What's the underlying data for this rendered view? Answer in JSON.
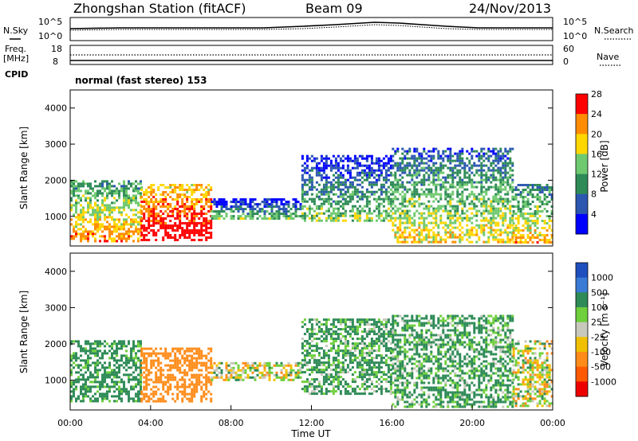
{
  "header": {
    "station": "Zhongshan Station (fitACF)",
    "beam": "Beam 09",
    "date": "24/Nov/2013"
  },
  "noise_panel": {
    "left_label": "N.Sky",
    "right_label": "N.Search",
    "left_ticks": [
      "10^5",
      "10^0"
    ],
    "right_ticks": [
      "10^5",
      "10^0"
    ]
  },
  "freq_panel": {
    "left_label_1": "Freq.",
    "left_label_2": "[MHz]",
    "left_ticks": [
      "18",
      "8"
    ],
    "right_label": "Nave",
    "right_ticks": [
      "60",
      "0"
    ]
  },
  "cpid": {
    "label": "CPID",
    "text": "normal (fast stereo) 153"
  },
  "chart_data": [
    {
      "type": "heatmap",
      "title": "",
      "xlabel": "",
      "ylabel": "Slant Range [km]",
      "yticks": [
        "1000",
        "2000",
        "3000",
        "4000"
      ],
      "ylim": [
        180,
        4500
      ],
      "xlim": [
        "00:00",
        "24:00"
      ],
      "colorbar_label": "Power [dB]",
      "colorbar_ticks": [
        "4",
        "8",
        "12",
        "16",
        "20",
        "24",
        "28"
      ],
      "colorbar_colors": [
        "#0000ff",
        "#2b57b0",
        "#2e8b57",
        "#6fc96f",
        "#ffd700",
        "#ff8c00",
        "#ff0000"
      ],
      "colorbar_range": [
        0,
        30
      ],
      "regions": [
        {
          "t_start": 0.0,
          "t_end": 3.5,
          "range_start": 300,
          "range_end": 2000,
          "value": 18
        },
        {
          "t_start": 3.5,
          "t_end": 7.0,
          "range_start": 350,
          "range_end": 1900,
          "value": 27
        },
        {
          "t_start": 7.0,
          "t_end": 11.5,
          "range_start": 950,
          "range_end": 1500,
          "value": 9
        },
        {
          "t_start": 11.5,
          "t_end": 16.0,
          "range_start": 900,
          "range_end": 2700,
          "value": 10
        },
        {
          "t_start": 16.0,
          "t_end": 22.0,
          "range_start": 300,
          "range_end": 2900,
          "value": 14
        },
        {
          "t_start": 22.0,
          "t_end": 24.0,
          "range_start": 300,
          "range_end": 1900,
          "value": 16
        }
      ]
    },
    {
      "type": "heatmap",
      "title": "",
      "xlabel": "Time UT",
      "ylabel": "Slant Range [km]",
      "yticks": [
        "1000",
        "2000",
        "3000",
        "4000"
      ],
      "xticks": [
        "00:00",
        "04:00",
        "08:00",
        "12:00",
        "16:00",
        "20:00",
        "00:00"
      ],
      "ylim": [
        180,
        4500
      ],
      "xlim": [
        "00:00",
        "24:00"
      ],
      "colorbar_label": "Velocity [m s⁻¹]",
      "colorbar_ticks": [
        "1000",
        "500",
        "100",
        "25",
        "-25",
        "-100",
        "-500",
        "-1000"
      ],
      "colorbar_colors": [
        "#1f4fbf",
        "#3a7bd5",
        "#2e8b57",
        "#6fcf3c",
        "#c8c8bc",
        "#f0c000",
        "#ff8c1a",
        "#ff5a00",
        "#ee0000"
      ],
      "regions": [
        {
          "t_start": 0.0,
          "t_end": 3.5,
          "range_start": 400,
          "range_end": 2100,
          "value": 200
        },
        {
          "t_start": 3.5,
          "t_end": 7.0,
          "range_start": 400,
          "range_end": 1900,
          "value": -300
        },
        {
          "t_start": 7.0,
          "t_end": 11.5,
          "range_start": 1000,
          "range_end": 1500,
          "value": 0
        },
        {
          "t_start": 11.5,
          "t_end": 16.0,
          "range_start": 600,
          "range_end": 2700,
          "value": 150
        },
        {
          "t_start": 16.0,
          "t_end": 22.0,
          "range_start": 300,
          "range_end": 2800,
          "value": 150
        },
        {
          "t_start": 22.0,
          "t_end": 24.0,
          "range_start": 300,
          "range_end": 2100,
          "value": 0
        }
      ]
    }
  ]
}
